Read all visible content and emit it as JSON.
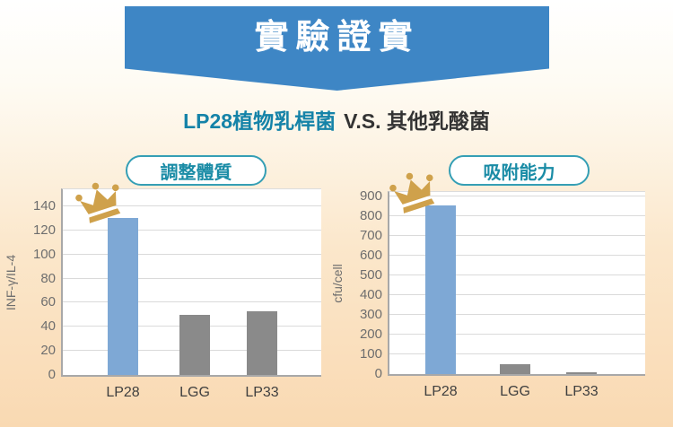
{
  "banner": {
    "title": "實驗證實"
  },
  "subtitle": {
    "highlight": "LP28植物乳桿菌",
    "vs": "V.S. 其他乳酸菌"
  },
  "icons": {
    "winner_badge": "crown-icon"
  },
  "palette": {
    "banner_blue": "#3e86c5",
    "highlight_bar_blue": "#7ea8d5",
    "other_bar_gray": "#8a8a8a",
    "teal_accent": "#1a8ca6",
    "pill_border": "#35a0b5",
    "crown_gold": "#cfa14b",
    "background_peach": "#f9d9b2"
  },
  "chart_data": [
    {
      "type": "bar",
      "title": "調整體質",
      "ylabel": "INF-γ/IL-4",
      "xlabel": "",
      "categories": [
        "LP28",
        "LGG",
        "LP33"
      ],
      "values": [
        130,
        50,
        53
      ],
      "bar_colors": [
        "#7ea8d5",
        "#8a8a8a",
        "#8a8a8a"
      ],
      "ylim": [
        0,
        140
      ],
      "ytick_step": 20,
      "grid": "horizontal",
      "legend": "none",
      "winner": "LP28"
    },
    {
      "type": "bar",
      "title": "吸附能力",
      "ylabel": "cfu/cell",
      "xlabel": "",
      "categories": [
        "LP28",
        "LGG",
        "LP33"
      ],
      "values": [
        855,
        50,
        10
      ],
      "bar_colors": [
        "#7ea8d5",
        "#8a8a8a",
        "#8a8a8a"
      ],
      "ylim": [
        0,
        900
      ],
      "ytick_step": 100,
      "grid": "horizontal",
      "legend": "none",
      "winner": "LP28"
    }
  ]
}
